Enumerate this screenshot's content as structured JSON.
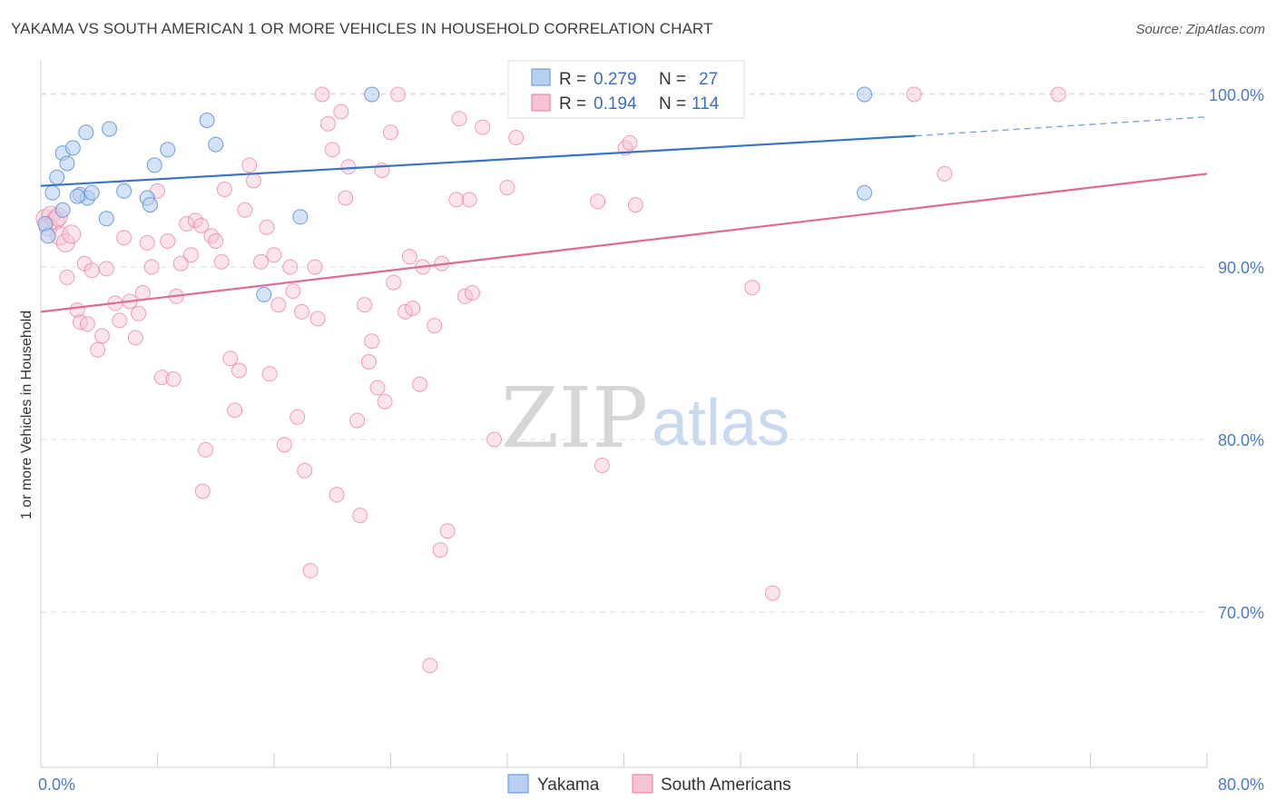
{
  "title": "YAKAMA VS SOUTH AMERICAN 1 OR MORE VEHICLES IN HOUSEHOLD CORRELATION CHART",
  "source": "Source: ZipAtlas.com",
  "watermark": {
    "zip": "ZIP",
    "atlas": "atlas"
  },
  "colors": {
    "yakama": "#5b8ed6",
    "yakama_fill": "#b8d0f0",
    "south": "#e8799e",
    "south_fill": "#f6c4d4",
    "tick": "#4a7bc8"
  },
  "chart_data": {
    "type": "scatter",
    "title": "YAKAMA VS SOUTH AMERICAN 1 OR MORE VEHICLES IN HOUSEHOLD CORRELATION CHART",
    "xlabel": "",
    "ylabel": "1 or more Vehicles in Household",
    "xlim": [
      0,
      80
    ],
    "ylim": [
      61,
      102
    ],
    "x_tick_labels": [
      "0.0%",
      "80.0%"
    ],
    "y_ticks": [
      70,
      80,
      90,
      100
    ],
    "y_tick_labels": [
      "70.0%",
      "80.0%",
      "90.0%",
      "100.0%"
    ],
    "grid": true,
    "legend_position": "top-center",
    "series": [
      {
        "name": "Yakama",
        "R": "0.279",
        "N": "27",
        "trend": {
          "x0": 0,
          "y0": 94.7,
          "x1": 60,
          "y1": 97.6,
          "dashed_to_x": 80,
          "dashed_to_y": 98.7
        },
        "points": [
          [
            0.3,
            92.5
          ],
          [
            0.5,
            91.8
          ],
          [
            0.8,
            94.3
          ],
          [
            1.1,
            95.2
          ],
          [
            1.5,
            96.6
          ],
          [
            1.8,
            96.0
          ],
          [
            2.2,
            96.9
          ],
          [
            2.7,
            94.2
          ],
          [
            3.2,
            94.0
          ],
          [
            3.5,
            94.3
          ],
          [
            3.1,
            97.8
          ],
          [
            4.7,
            98.0
          ],
          [
            2.5,
            94.1
          ],
          [
            1.5,
            93.3
          ],
          [
            4.5,
            92.8
          ],
          [
            5.7,
            94.4
          ],
          [
            7.3,
            94.0
          ],
          [
            7.5,
            93.6
          ],
          [
            7.8,
            95.9
          ],
          [
            8.7,
            96.8
          ],
          [
            11.4,
            98.5
          ],
          [
            12.0,
            97.1
          ],
          [
            15.3,
            88.4
          ],
          [
            17.8,
            92.9
          ],
          [
            22.7,
            100.0
          ],
          [
            56.5,
            94.3
          ],
          [
            56.5,
            100.0
          ]
        ]
      },
      {
        "name": "South Americans",
        "R": "0.194",
        "N": "114",
        "trend": {
          "x0": 0,
          "y0": 87.4,
          "x1": 80,
          "y1": 95.4
        },
        "points": [
          [
            0.3,
            92.8
          ],
          [
            0.5,
            92.3
          ],
          [
            0.7,
            93.0
          ],
          [
            1.0,
            92.7
          ],
          [
            1.3,
            91.8
          ],
          [
            1.7,
            91.4
          ],
          [
            1.8,
            89.4
          ],
          [
            2.5,
            87.5
          ],
          [
            2.7,
            86.8
          ],
          [
            3.0,
            90.2
          ],
          [
            3.2,
            86.7
          ],
          [
            3.5,
            89.8
          ],
          [
            3.9,
            85.2
          ],
          [
            4.2,
            86.0
          ],
          [
            4.5,
            89.9
          ],
          [
            5.1,
            87.9
          ],
          [
            5.4,
            86.9
          ],
          [
            5.7,
            91.7
          ],
          [
            6.1,
            88.0
          ],
          [
            6.5,
            85.9
          ],
          [
            6.7,
            87.3
          ],
          [
            7.0,
            88.5
          ],
          [
            7.3,
            91.4
          ],
          [
            7.6,
            90.0
          ],
          [
            8.0,
            94.4
          ],
          [
            8.3,
            83.6
          ],
          [
            8.7,
            91.5
          ],
          [
            9.1,
            83.5
          ],
          [
            9.3,
            88.3
          ],
          [
            9.6,
            90.2
          ],
          [
            10.0,
            92.5
          ],
          [
            10.3,
            90.7
          ],
          [
            10.6,
            92.7
          ],
          [
            11.0,
            92.4
          ],
          [
            11.3,
            79.4
          ],
          [
            11.1,
            77.0
          ],
          [
            11.7,
            91.8
          ],
          [
            12.0,
            91.5
          ],
          [
            12.4,
            90.3
          ],
          [
            12.6,
            94.5
          ],
          [
            13.0,
            84.7
          ],
          [
            13.3,
            81.7
          ],
          [
            13.6,
            84.0
          ],
          [
            14.0,
            93.3
          ],
          [
            14.3,
            95.9
          ],
          [
            14.6,
            95.0
          ],
          [
            15.1,
            90.3
          ],
          [
            15.5,
            92.3
          ],
          [
            15.7,
            83.8
          ],
          [
            16.0,
            90.7
          ],
          [
            16.3,
            87.8
          ],
          [
            16.7,
            79.7
          ],
          [
            17.1,
            90.0
          ],
          [
            17.3,
            88.6
          ],
          [
            17.6,
            81.3
          ],
          [
            17.9,
            87.4
          ],
          [
            18.1,
            78.2
          ],
          [
            18.5,
            72.4
          ],
          [
            18.8,
            90.0
          ],
          [
            19.0,
            87.0
          ],
          [
            19.3,
            100.0
          ],
          [
            19.7,
            98.3
          ],
          [
            20.0,
            96.8
          ],
          [
            20.3,
            76.8
          ],
          [
            20.6,
            99.0
          ],
          [
            20.9,
            94.0
          ],
          [
            21.1,
            95.8
          ],
          [
            21.7,
            81.1
          ],
          [
            21.9,
            75.6
          ],
          [
            22.2,
            87.8
          ],
          [
            22.5,
            84.5
          ],
          [
            22.7,
            85.7
          ],
          [
            23.1,
            83.0
          ],
          [
            23.4,
            95.6
          ],
          [
            23.6,
            82.2
          ],
          [
            24.0,
            97.8
          ],
          [
            24.2,
            89.1
          ],
          [
            24.5,
            100.0
          ],
          [
            25.0,
            87.4
          ],
          [
            25.3,
            90.6
          ],
          [
            25.5,
            87.6
          ],
          [
            26.0,
            83.2
          ],
          [
            26.2,
            90.0
          ],
          [
            26.7,
            66.9
          ],
          [
            27.0,
            86.6
          ],
          [
            27.4,
            73.6
          ],
          [
            27.5,
            90.2
          ],
          [
            27.9,
            74.7
          ],
          [
            28.5,
            93.9
          ],
          [
            28.7,
            98.6
          ],
          [
            29.1,
            88.3
          ],
          [
            29.4,
            93.9
          ],
          [
            29.6,
            88.5
          ],
          [
            30.3,
            98.1
          ],
          [
            31.1,
            80.0
          ],
          [
            32.0,
            94.6
          ],
          [
            32.6,
            97.5
          ],
          [
            34.7,
            100.0
          ],
          [
            38.2,
            93.8
          ],
          [
            38.5,
            78.5
          ],
          [
            40.1,
            96.9
          ],
          [
            40.8,
            93.6
          ],
          [
            40.4,
            97.2
          ],
          [
            48.8,
            88.8
          ],
          [
            50.2,
            71.1
          ],
          [
            59.9,
            100.0
          ],
          [
            62.0,
            95.4
          ],
          [
            69.8,
            100.0
          ],
          [
            1.2,
            92.9
          ],
          [
            2.1,
            91.9
          ]
        ]
      }
    ]
  },
  "legend": {
    "r_label": "R =",
    "n_label": "N =",
    "yakama_r": "0.279",
    "yakama_n": "27",
    "south_r": "0.194",
    "south_n": "114"
  },
  "bottom_legend": [
    "Yakama",
    "South Americans"
  ]
}
